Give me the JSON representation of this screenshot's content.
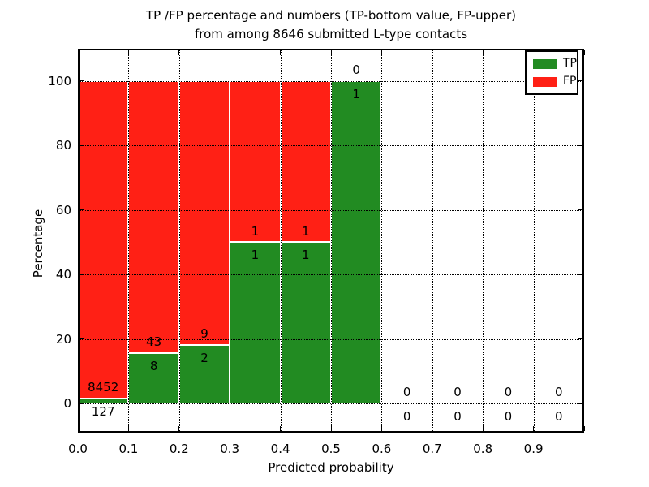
{
  "chart_data": {
    "type": "bar",
    "stacked": true,
    "title_line1": "TP /FP percentage and numbers (TP-bottom value, FP-upper)",
    "title_line2": "from among 8646 submitted L-type contacts",
    "xlabel": "Predicted probability",
    "ylabel": "Percentage",
    "total_submitted_contacts": 8646,
    "xlim": [
      0.0,
      1.0
    ],
    "ylim": [
      -9,
      110
    ],
    "grid": "dotted",
    "legend_position": "upper-right",
    "colors": {
      "tp": "#228b22",
      "fp": "#ff2015",
      "text": "#000000",
      "background": "#ffffff"
    },
    "legend": [
      {
        "label": "TP",
        "color": "#228b22"
      },
      {
        "label": "FP",
        "color": "#ff2015"
      }
    ],
    "xticks": [
      {
        "v": 0.0,
        "label": "0.0"
      },
      {
        "v": 0.1,
        "label": "0.1"
      },
      {
        "v": 0.2,
        "label": "0.2"
      },
      {
        "v": 0.3,
        "label": "0.3"
      },
      {
        "v": 0.4,
        "label": "0.4"
      },
      {
        "v": 0.5,
        "label": "0.5"
      },
      {
        "v": 0.6,
        "label": "0.6"
      },
      {
        "v": 0.7,
        "label": "0.7"
      },
      {
        "v": 0.8,
        "label": "0.8"
      },
      {
        "v": 0.9,
        "label": "0.9"
      },
      {
        "v": 1.0,
        "label": ""
      }
    ],
    "yticks": [
      {
        "v": 0,
        "label": "0"
      },
      {
        "v": 20,
        "label": "20"
      },
      {
        "v": 40,
        "label": "40"
      },
      {
        "v": 60,
        "label": "60"
      },
      {
        "v": 80,
        "label": "80"
      },
      {
        "v": 100,
        "label": "100"
      }
    ],
    "bins": [
      {
        "x0": 0.0,
        "x1": 0.1,
        "tp_count": 127,
        "fp_count": 8452,
        "tp_pct": 1.48,
        "fp_pct": 98.52
      },
      {
        "x0": 0.1,
        "x1": 0.2,
        "tp_count": 8,
        "fp_count": 43,
        "tp_pct": 15.69,
        "fp_pct": 84.31
      },
      {
        "x0": 0.2,
        "x1": 0.3,
        "tp_count": 2,
        "fp_count": 9,
        "tp_pct": 18.18,
        "fp_pct": 81.82
      },
      {
        "x0": 0.3,
        "x1": 0.4,
        "tp_count": 1,
        "fp_count": 1,
        "tp_pct": 50.0,
        "fp_pct": 50.0
      },
      {
        "x0": 0.4,
        "x1": 0.5,
        "tp_count": 1,
        "fp_count": 1,
        "tp_pct": 50.0,
        "fp_pct": 50.0
      },
      {
        "x0": 0.5,
        "x1": 0.6,
        "tp_count": 1,
        "fp_count": 0,
        "tp_pct": 100.0,
        "fp_pct": 0.0
      },
      {
        "x0": 0.6,
        "x1": 0.7,
        "tp_count": 0,
        "fp_count": 0,
        "tp_pct": 0.0,
        "fp_pct": 0.0
      },
      {
        "x0": 0.7,
        "x1": 0.8,
        "tp_count": 0,
        "fp_count": 0,
        "tp_pct": 0.0,
        "fp_pct": 0.0
      },
      {
        "x0": 0.8,
        "x1": 0.9,
        "tp_count": 0,
        "fp_count": 0,
        "tp_pct": 0.0,
        "fp_pct": 0.0
      },
      {
        "x0": 0.9,
        "x1": 1.0,
        "tp_count": 0,
        "fp_count": 0,
        "tp_pct": 0.0,
        "fp_pct": 0.0
      }
    ]
  }
}
